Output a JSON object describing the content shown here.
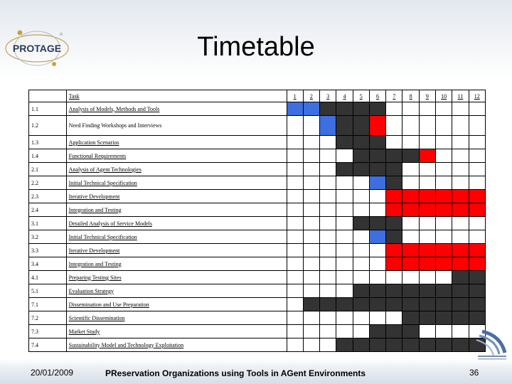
{
  "slide": {
    "title": "Timetable",
    "date": "20/01/2009",
    "footer": "PReservation Organizations using Tools in AGent Environments",
    "page": "36"
  },
  "logo": {
    "text": "PROTAGE"
  },
  "legend_colors": {
    "B": "#3d6fe0",
    "K": "#333333",
    "R": "#ff0000"
  },
  "table": {
    "header": {
      "task": "Task",
      "months": [
        "1",
        "2",
        "3",
        "4",
        "5",
        "6",
        "7",
        "8",
        "9",
        "10",
        "11",
        "12"
      ]
    },
    "rows": [
      {
        "id": "1.1",
        "task": "Analysis of Models, Methods and Tools",
        "cells": "BBKKKK......"
      },
      {
        "id": "1.2",
        "task": "Need Finding Workshops and Interviews",
        "cells": "..BKKR......"
      },
      {
        "id": "1.3",
        "task": "Application Scenarios",
        "cells": "...KKK......"
      },
      {
        "id": "1.4",
        "task": "Functional Requirements",
        "cells": "....KKKKR..."
      },
      {
        "id": "2.1",
        "task": "Analysis of Agent Technologies",
        "cells": "...KKKK....."
      },
      {
        "id": "2.2",
        "task": "Initial Technical Specification",
        "cells": ".....BK....."
      },
      {
        "id": "2.3",
        "task": "Iterative Development",
        "cells": "......RRRRRR"
      },
      {
        "id": "2.4",
        "task": "Integration and Testing",
        "cells": "......RRRRRR"
      },
      {
        "id": "3.1",
        "task": "Detailed Analysis of Service Models",
        "cells": "....KKK....."
      },
      {
        "id": "3.2",
        "task": "Initial Technical Specification",
        "cells": ".....BK....."
      },
      {
        "id": "3.3",
        "task": "Iterative Development",
        "cells": "......RRRRRR"
      },
      {
        "id": "3.4",
        "task": "Integration and Testing",
        "cells": "......RRRRRR"
      },
      {
        "id": "4.1",
        "task": "Preparing Testing Sites",
        "cells": "..........KK"
      },
      {
        "id": "5.1",
        "task": "Evaluation Strategy",
        "cells": "....KKKKKKKK"
      },
      {
        "id": "7.1",
        "task": "Dissemination and Use Preparation",
        "cells": ".KKKKKKKKKKK"
      },
      {
        "id": "7.2",
        "task": "Scientific Dissemination",
        "cells": ".......KKKKK"
      },
      {
        "id": "7.3",
        "task": "Market Study",
        "cells": ".....KKK...."
      },
      {
        "id": "7.4",
        "task": "Sustainability Model and Technology Exploitation",
        "cells": "...KKKKKKKKK"
      }
    ]
  }
}
